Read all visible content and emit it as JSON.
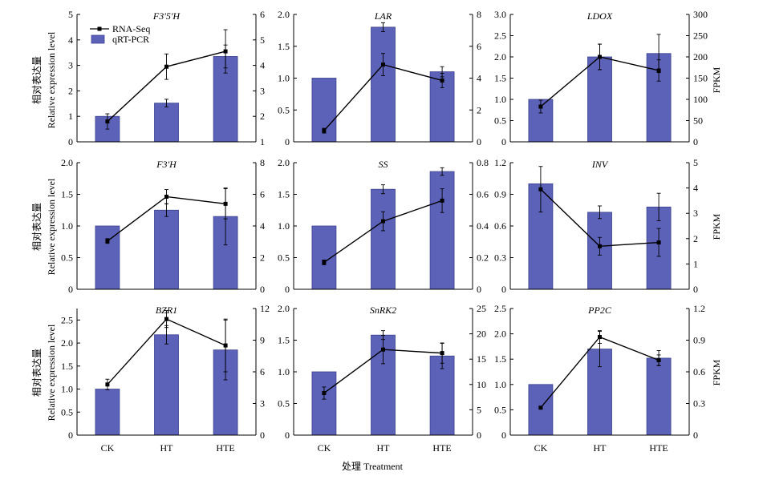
{
  "figure": {
    "left_ylabel_cn": "相对表达量",
    "left_ylabel_en": "Relative expression level",
    "right_ylabel": "FPKM",
    "xlabel": "处理 Treatment",
    "legend": {
      "line": "RNA-Seq",
      "bar": "qRT-PCR"
    }
  },
  "colors": {
    "bar_fill": "#5B62B8",
    "bar_stroke": "#3D438F",
    "line": "#000000"
  },
  "chart_data": [
    {
      "type": "bar+line",
      "title": "F3'5'H",
      "categories": [
        "CK",
        "HT",
        "HTE"
      ],
      "left_ylim": [
        0,
        5
      ],
      "left_ticks": [
        "0",
        "1",
        "2",
        "3",
        "4",
        "5"
      ],
      "right_ylim": [
        1,
        6
      ],
      "right_ticks": [
        "1",
        "2",
        "3",
        "4",
        "5",
        "6"
      ],
      "series": [
        {
          "name": "qRT-PCR",
          "values": [
            1.0,
            1.52,
            3.35
          ],
          "errors": [
            0.0,
            0.15,
            0.45
          ]
        },
        {
          "name": "RNA-Seq",
          "values": [
            1.8,
            3.95,
            4.55
          ],
          "errors": [
            0.3,
            0.5,
            0.85
          ]
        }
      ]
    },
    {
      "type": "bar+line",
      "title": "LAR",
      "categories": [
        "CK",
        "HT",
        "HTE"
      ],
      "left_ylim": [
        0,
        2
      ],
      "left_ticks": [
        "0",
        "0.5",
        "1.0",
        "1.5",
        "2.0"
      ],
      "right_ylim": [
        0,
        8
      ],
      "right_ticks": [
        "0",
        "2",
        "4",
        "6",
        "8"
      ],
      "series": [
        {
          "name": "qRT-PCR",
          "values": [
            1.0,
            1.8,
            1.1
          ],
          "errors": [
            0.0,
            0.07,
            0.08
          ]
        },
        {
          "name": "RNA-Seq",
          "values": [
            0.7,
            4.85,
            3.85
          ],
          "errors": [
            0.15,
            0.7,
            0.45
          ]
        }
      ]
    },
    {
      "type": "bar+line",
      "title": "LDOX",
      "categories": [
        "CK",
        "HT",
        "HTE"
      ],
      "left_ylim": [
        0,
        3
      ],
      "left_ticks": [
        "0",
        "0.5",
        "1.0",
        "1.5",
        "2.0",
        "2.5",
        "3.0"
      ],
      "right_ylim": [
        0,
        300
      ],
      "right_ticks": [
        "0",
        "50",
        "100",
        "150",
        "200",
        "250",
        "300"
      ],
      "series": [
        {
          "name": "qRT-PCR",
          "values": [
            1.0,
            2.0,
            2.08
          ],
          "errors": [
            0.0,
            0.3,
            0.45
          ]
        },
        {
          "name": "RNA-Seq",
          "values": [
            83,
            200,
            168
          ],
          "errors": [
            15,
            30,
            25
          ]
        }
      ]
    },
    {
      "type": "bar+line",
      "title": "F3'H",
      "categories": [
        "CK",
        "HT",
        "HTE"
      ],
      "left_ylim": [
        0,
        2
      ],
      "left_ticks": [
        "0",
        "0.5",
        "1.0",
        "1.5",
        "2.0"
      ],
      "right_ylim": [
        0,
        8
      ],
      "right_ticks": [
        "0",
        "2",
        "4",
        "6",
        "8"
      ],
      "series": [
        {
          "name": "qRT-PCR",
          "values": [
            1.0,
            1.25,
            1.15
          ],
          "errors": [
            0.0,
            0.1,
            0.45
          ]
        },
        {
          "name": "RNA-Seq",
          "values": [
            3.05,
            5.85,
            5.4
          ],
          "errors": [
            0.15,
            0.45,
            0.95
          ]
        }
      ]
    },
    {
      "type": "bar+line",
      "title": "SS",
      "categories": [
        "CK",
        "HT",
        "HTE"
      ],
      "left_ylim": [
        0,
        2
      ],
      "left_ticks": [
        "0",
        "0.5",
        "1.0",
        "1.5",
        "2.0"
      ],
      "right_ylim": [
        0,
        0.8
      ],
      "right_ticks": [
        "0",
        "0.2",
        "0.4",
        "0.6",
        "0.8"
      ],
      "series": [
        {
          "name": "qRT-PCR",
          "values": [
            1.0,
            1.58,
            1.86
          ],
          "errors": [
            0.0,
            0.07,
            0.06
          ]
        },
        {
          "name": "RNA-Seq",
          "values": [
            0.17,
            0.43,
            0.56
          ],
          "errors": [
            0.015,
            0.06,
            0.075
          ]
        }
      ]
    },
    {
      "type": "bar+line",
      "title": "INV",
      "categories": [
        "CK",
        "HT",
        "HTE"
      ],
      "left_ylim": [
        0,
        1.2
      ],
      "left_ticks": [
        "0",
        "0.3",
        "0.6",
        "0.9",
        "1.2"
      ],
      "right_ylim": [
        0,
        5
      ],
      "right_ticks": [
        "0",
        "1",
        "2",
        "3",
        "4",
        "5"
      ],
      "series": [
        {
          "name": "qRT-PCR",
          "values": [
            1.0,
            0.73,
            0.78
          ],
          "errors": [
            0.0,
            0.06,
            0.13
          ]
        },
        {
          "name": "RNA-Seq",
          "values": [
            3.95,
            1.7,
            1.85
          ],
          "errors": [
            0.9,
            0.35,
            0.55
          ]
        }
      ]
    },
    {
      "type": "bar+line",
      "title": "BZR1",
      "categories": [
        "CK",
        "HT",
        "HTE"
      ],
      "left_ylim": [
        0,
        2.75
      ],
      "left_ticks": [
        "0",
        "0.5",
        "1.0",
        "1.5",
        "2.0",
        "2.5"
      ],
      "right_ylim": [
        0,
        12
      ],
      "right_ticks": [
        "0",
        "3",
        "6",
        "9",
        "12"
      ],
      "series": [
        {
          "name": "qRT-PCR",
          "values": [
            1.0,
            2.18,
            1.85
          ],
          "errors": [
            0.0,
            0.2,
            0.65
          ]
        },
        {
          "name": "RNA-Seq",
          "values": [
            4.8,
            11.0,
            8.5
          ],
          "errors": [
            0.5,
            0.8,
            2.5
          ]
        }
      ]
    },
    {
      "type": "bar+line",
      "title": "SnRK2",
      "categories": [
        "CK",
        "HT",
        "HTE"
      ],
      "left_ylim": [
        0,
        2
      ],
      "left_ticks": [
        "0",
        "0.5",
        "1.0",
        "1.5",
        "2.0"
      ],
      "right_ylim": [
        0,
        25
      ],
      "right_ticks": [
        "0",
        "5",
        "10",
        "15",
        "20",
        "25"
      ],
      "series": [
        {
          "name": "qRT-PCR",
          "values": [
            1.0,
            1.58,
            1.25
          ],
          "errors": [
            0.0,
            0.07,
            0.2
          ]
        },
        {
          "name": "RNA-Seq",
          "values": [
            8.3,
            16.9,
            16.2
          ],
          "errors": [
            1.2,
            2.8,
            2.0
          ]
        }
      ]
    },
    {
      "type": "bar+line",
      "title": "PP2C",
      "categories": [
        "CK",
        "HT",
        "HTE"
      ],
      "left_ylim": [
        0,
        2.5
      ],
      "left_ticks": [
        "0",
        "0.5",
        "1.0",
        "1.5",
        "2.0",
        "2.5"
      ],
      "right_ylim": [
        0,
        1.2
      ],
      "right_ticks": [
        "0",
        "0.3",
        "0.6",
        "0.9",
        "1.2"
      ],
      "series": [
        {
          "name": "qRT-PCR",
          "values": [
            1.0,
            1.7,
            1.52
          ],
          "errors": [
            0.0,
            0.35,
            0.15
          ]
        },
        {
          "name": "RNA-Seq",
          "values": [
            0.26,
            0.93,
            0.71
          ],
          "errors": [
            0.01,
            0.06,
            0.05
          ]
        }
      ]
    }
  ]
}
